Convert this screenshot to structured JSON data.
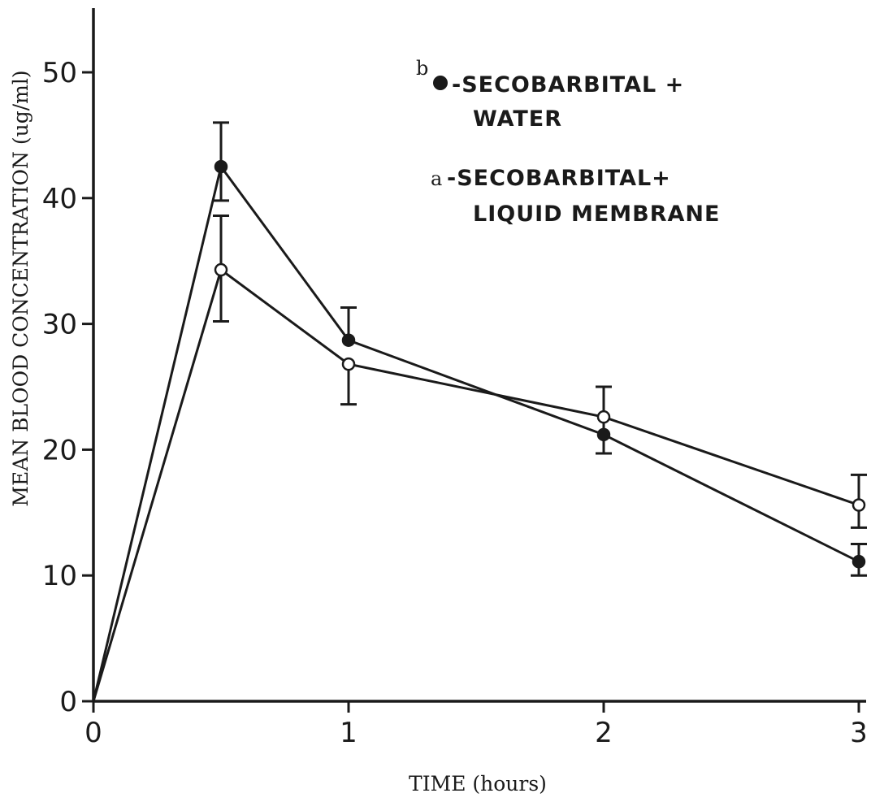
{
  "chart_data": {
    "type": "line",
    "title": "",
    "xlabel": "TIME (hours)",
    "ylabel": "MEAN BLOOD CONCENTRATION (ug/ml)",
    "xlim": [
      0,
      3
    ],
    "ylim": [
      0,
      50
    ],
    "x_ticks": [
      0,
      1,
      2,
      3
    ],
    "x_tick_labels": [
      "0",
      "1",
      "2",
      "3"
    ],
    "y_ticks": [
      0,
      10,
      20,
      30,
      40,
      50
    ],
    "y_tick_labels": [
      "0",
      "10",
      "20",
      "30",
      "40",
      "50"
    ],
    "grid": false,
    "legend_placement": "top-right",
    "series": [
      {
        "name": "SECOBARBITAL + WATER",
        "legend_key": "b",
        "legend_lines": [
          "-SECOBARBITAL +",
          "WATER"
        ],
        "marker": "filled-circle",
        "x": [
          0,
          0.5,
          1,
          2,
          3
        ],
        "y": [
          0,
          42.5,
          28.7,
          21.2,
          11.1
        ],
        "err_high": [
          null,
          46.0,
          31.3,
          25.0,
          12.5
        ],
        "err_low": [
          null,
          39.8,
          null,
          19.7,
          10.0
        ]
      },
      {
        "name": "SECOBARBITAL + LIQUID MEMBRANE",
        "legend_key": "a",
        "legend_lines": [
          "-SECOBARBITAL+",
          "LIQUID MEMBRANE"
        ],
        "marker": "open-circle",
        "x": [
          0,
          0.5,
          1,
          2,
          3
        ],
        "y": [
          0,
          34.3,
          26.8,
          22.6,
          15.6
        ],
        "err_high": [
          null,
          38.6,
          null,
          null,
          18.0
        ],
        "err_low": [
          null,
          30.2,
          23.6,
          null,
          13.8
        ]
      }
    ]
  }
}
